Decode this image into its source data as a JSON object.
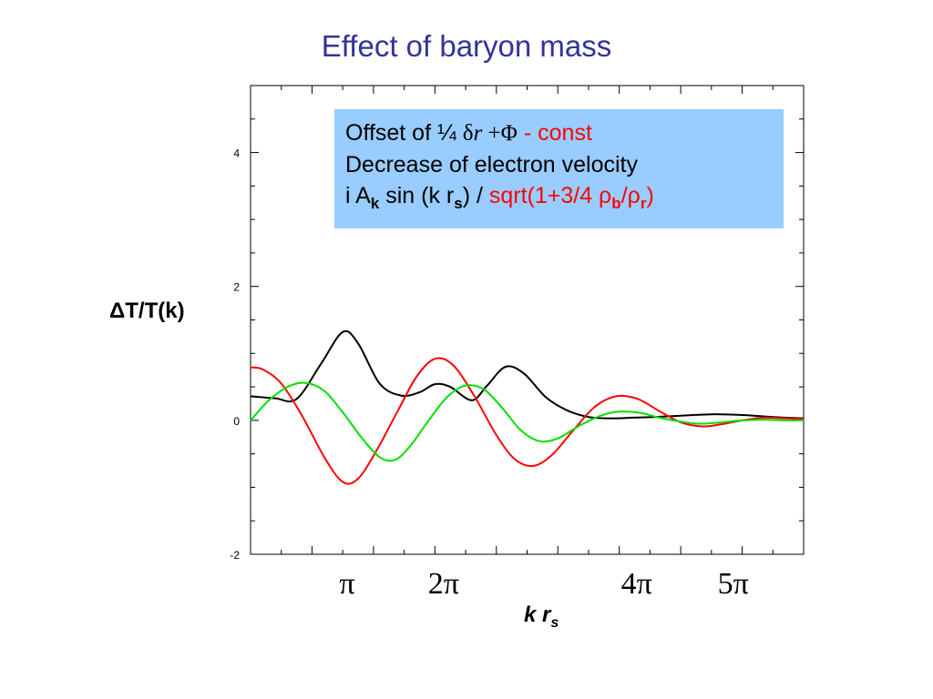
{
  "title": "Effect of baryon mass",
  "ylabel": "ΔT/T(k)",
  "xlabel": {
    "main": "k r",
    "sub": "s"
  },
  "annotation": {
    "line1": {
      "text": "Offset of ¼ ",
      "delta": "δ",
      "r": "r",
      "plus_phi": " +Φ",
      "red": " - const"
    },
    "line2": "Decrease of electron velocity",
    "line3": {
      "pre": "i A",
      "k_sub": "k",
      "mid": " sin (k r",
      "s_sub": "s",
      "post": ") / ",
      "red_pre": "sqrt(1+3/4 ρ",
      "b_sub": "b",
      "red_mid": "/ρ",
      "r_sub": "r",
      "red_post": ")"
    }
  },
  "colors": {
    "title": "#33339a",
    "annotation_bg": "#99ccff",
    "black": "#000000",
    "red": "#ff0000",
    "green": "#00e000"
  },
  "chart_data": {
    "type": "line",
    "title": "Effect of baryon mass",
    "xlabel": "k r_s",
    "ylabel": "ΔT/T(k)",
    "xlim": [
      0,
      18
    ],
    "ylim": [
      -2,
      5
    ],
    "y_ticks": [
      -2,
      0,
      2,
      4
    ],
    "y_tick_labels": [
      "-2",
      "0",
      "2",
      "4"
    ],
    "x_tick_labels": [
      {
        "x": 3.1416,
        "label": "π"
      },
      {
        "x": 6.2832,
        "label": "2π"
      },
      {
        "x": 12.566,
        "label": "4π"
      },
      {
        "x": 15.708,
        "label": "5π"
      }
    ],
    "series": [
      {
        "color": "#000000",
        "x": [
          0,
          0.8,
          1.5,
          2.3,
          3.0,
          3.5,
          4.2,
          4.9,
          5.5,
          6.0,
          6.5,
          7.2,
          7.7,
          8.3,
          8.9,
          9.6,
          10.3,
          11.0,
          11.7,
          12.4,
          13.1,
          14.0,
          15.0,
          16.0,
          17.0,
          18.0
        ],
        "y": [
          0.36,
          0.33,
          0.32,
          0.85,
          1.32,
          1.15,
          0.55,
          0.37,
          0.42,
          0.54,
          0.5,
          0.3,
          0.52,
          0.8,
          0.7,
          0.35,
          0.15,
          0.05,
          0.03,
          0.04,
          0.05,
          0.07,
          0.09,
          0.08,
          0.05,
          0.03
        ]
      },
      {
        "color": "#ff0000",
        "x": [
          0,
          0.4,
          1.0,
          1.7,
          2.4,
          3.0,
          3.5,
          4.1,
          4.8,
          5.4,
          6.0,
          6.6,
          7.3,
          8.0,
          8.6,
          9.2,
          9.8,
          10.5,
          11.2,
          11.9,
          12.6,
          13.3,
          14.0,
          14.7,
          15.3,
          16.0,
          16.7,
          17.4,
          18.0
        ],
        "y": [
          0.79,
          0.76,
          0.55,
          0.05,
          -0.55,
          -0.92,
          -0.87,
          -0.45,
          0.15,
          0.65,
          0.92,
          0.82,
          0.35,
          -0.22,
          -0.58,
          -0.68,
          -0.52,
          -0.15,
          0.2,
          0.36,
          0.32,
          0.14,
          -0.03,
          -0.09,
          -0.06,
          0.0,
          0.04,
          0.03,
          0.02
        ]
      },
      {
        "color": "#00e000",
        "x": [
          0,
          0.6,
          1.2,
          1.8,
          2.4,
          3.0,
          3.6,
          4.2,
          4.7,
          5.2,
          5.8,
          6.4,
          7.0,
          7.6,
          8.2,
          8.8,
          9.4,
          10.0,
          10.7,
          11.4,
          12.0,
          12.7,
          13.3,
          14.0,
          14.6,
          15.3,
          16.0,
          16.7,
          17.4,
          18.0
        ],
        "y": [
          0.0,
          0.3,
          0.5,
          0.56,
          0.44,
          0.12,
          -0.25,
          -0.55,
          -0.59,
          -0.38,
          0.0,
          0.35,
          0.52,
          0.46,
          0.18,
          -0.15,
          -0.31,
          -0.27,
          -0.08,
          0.07,
          0.13,
          0.11,
          0.04,
          -0.02,
          -0.05,
          -0.03,
          0.0,
          0.01,
          0.0,
          0.0
        ]
      }
    ]
  }
}
